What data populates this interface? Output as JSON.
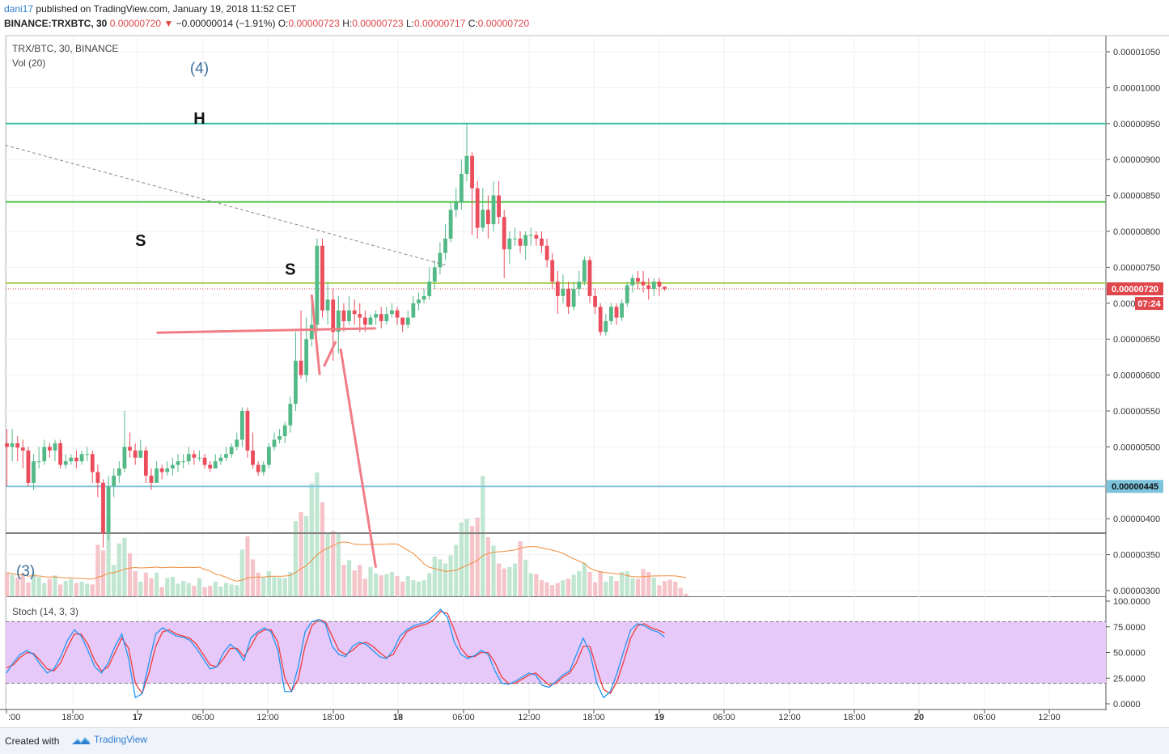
{
  "header": {
    "user": "dani17",
    "published": "published on TradingView.com, January 19, 2018 11:52 CET",
    "symbol": "BINANCE:TRXBTC, 30",
    "last": "0.00000720",
    "change": "−0.00000014 (−1.91%)",
    "o_label": "O:",
    "o": "0.00000723",
    "h_label": "H:",
    "h": "0.00000723",
    "l_label": "L:",
    "l": "0.00000717",
    "c_label": "C:",
    "c": "0.00000720"
  },
  "legend": {
    "series": "TRX/BTC, 30, BINANCE",
    "volume": "Vol (20)",
    "stoch": "Stoch (14, 3, 3)"
  },
  "footer": {
    "created_with": "Created with",
    "brand": "TradingView"
  },
  "colors": {
    "up": "#53b987",
    "down": "#eb4d5c",
    "vol_up": "#c0e6d1",
    "vol_down": "#f5c4c9",
    "vol_ma": "#f08d3c",
    "stoch_k": "#2196f3",
    "stoch_d": "#ef3b3b",
    "stoch_band": "#e6c9f8",
    "teal": "#3cc0a6",
    "green": "#48c443",
    "lime": "#a9cf4e",
    "blue": "#7dc3dc",
    "gray": "#808080",
    "drawing": "#f07d86",
    "last_price": "#e0474c"
  },
  "chart_data": {
    "type": "candlestick",
    "price_axis_ticks": [
      "0.00001050",
      "0.00001000",
      "0.00000950",
      "0.00000900",
      "0.00000850",
      "0.00000800",
      "0.00000750",
      "0.00000700",
      "0.00000650",
      "0.00000600",
      "0.00000550",
      "0.00000500",
      "0.00000450",
      "0.00000400",
      "0.00000350",
      "0.00000300"
    ],
    "price_axis_ticks_hidden": [
      "0.00000700"
    ],
    "price_axis_tick_partial": {
      "0.00000700": "0.0000"
    },
    "ylim": [
      3e-06,
      1.05e-05
    ],
    "time_axis_ticks": [
      ":00",
      "18:00",
      "17",
      "06:00",
      "12:00",
      "18:00",
      "18",
      "06:00",
      "12:00",
      "18:00",
      "19",
      "06:00",
      "12:00",
      "18:00",
      "20",
      "06:00",
      "12:00"
    ],
    "time_axis_bold": [
      "17",
      "18",
      "19",
      "20"
    ],
    "price_labels": [
      {
        "value": "0.00000720",
        "kind": "last"
      },
      {
        "value": "07:24",
        "kind": "countdown"
      },
      {
        "value": "0.00000445",
        "kind": "line"
      }
    ],
    "horizontal_lines": [
      {
        "price": 9.5e-06,
        "color": "teal"
      },
      {
        "price": 8.41e-06,
        "color": "green"
      },
      {
        "price": 7.28e-06,
        "color": "lime"
      },
      {
        "price": 4.45e-06,
        "color": "blue"
      },
      {
        "price": 3.8e-06,
        "color": "gray"
      }
    ],
    "annotations": [
      {
        "text": "(4)",
        "at": [
          36.0,
          1.02e-05
        ]
      },
      {
        "text": "H",
        "at": [
          36.0,
          9.5e-06
        ]
      },
      {
        "text": "S",
        "at": [
          25.0,
          7.8e-06
        ]
      },
      {
        "text": "S",
        "at": [
          53.0,
          7.4e-06
        ]
      },
      {
        "text": "(3)",
        "at": [
          3.5,
          3.2e-06
        ]
      }
    ],
    "drawings": [
      {
        "kind": "trend-dashed",
        "from": [
          -0.3,
          9.2e-06
        ],
        "to": [
          82.0,
          7.53e-06
        ]
      },
      {
        "kind": "neckline",
        "from": [
          28.0,
          6.59e-06
        ],
        "to": [
          69.0,
          6.65e-06
        ]
      },
      {
        "kind": "projection",
        "points": [
          [
            57.0,
            7.12e-06
          ],
          [
            58.5,
            6e-06
          ]
        ]
      },
      {
        "kind": "projection",
        "points": [
          [
            59.3,
            6.12e-06
          ],
          [
            61.5,
            6.47e-06
          ]
        ]
      },
      {
        "kind": "projection",
        "points": [
          [
            62.4,
            6.37e-06
          ],
          [
            69.0,
            3.32e-06
          ]
        ]
      }
    ],
    "candles": [
      [
        5.05,
        5.0,
        5.25,
        4.45
      ],
      [
        5.0,
        5.05,
        5.25,
        4.8
      ],
      [
        5.05,
        4.99,
        5.15,
        4.8
      ],
      [
        4.99,
        4.95,
        5.1,
        4.7
      ],
      [
        4.95,
        4.5,
        5.0,
        4.45
      ],
      [
        4.5,
        4.8,
        4.9,
        4.4
      ],
      [
        4.8,
        4.8,
        5.0,
        4.7
      ],
      [
        4.8,
        5.0,
        5.1,
        4.75
      ],
      [
        5.0,
        4.95,
        5.05,
        4.85
      ],
      [
        4.95,
        5.05,
        5.1,
        4.8
      ],
      [
        5.05,
        4.75,
        5.1,
        4.7
      ],
      [
        4.75,
        4.8,
        4.9,
        4.7
      ],
      [
        4.8,
        4.85,
        4.9,
        4.75
      ],
      [
        4.85,
        4.8,
        4.95,
        4.7
      ],
      [
        4.8,
        4.9,
        4.95,
        4.75
      ],
      [
        4.9,
        4.9,
        5.0,
        4.8
      ],
      [
        4.9,
        4.65,
        4.95,
        4.5
      ],
      [
        4.65,
        4.5,
        4.75,
        4.3
      ],
      [
        4.5,
        3.8,
        4.55,
        3.6
      ],
      [
        3.8,
        4.45,
        4.6,
        3.7
      ],
      [
        4.45,
        4.6,
        4.7,
        4.3
      ],
      [
        4.6,
        4.7,
        4.8,
        4.5
      ],
      [
        4.7,
        5.0,
        5.5,
        4.65
      ],
      [
        5.0,
        4.95,
        5.2,
        4.85
      ],
      [
        4.95,
        4.85,
        5.05,
        4.75
      ],
      [
        4.85,
        4.95,
        5.1,
        4.85
      ],
      [
        4.95,
        4.6,
        5.0,
        4.5
      ],
      [
        4.6,
        4.5,
        4.7,
        4.4
      ],
      [
        4.5,
        4.7,
        4.8,
        4.5
      ],
      [
        4.7,
        4.65,
        4.75,
        4.55
      ],
      [
        4.65,
        4.7,
        4.8,
        4.6
      ],
      [
        4.7,
        4.75,
        4.85,
        4.6
      ],
      [
        4.75,
        4.8,
        4.9,
        4.65
      ],
      [
        4.8,
        4.8,
        4.9,
        4.7
      ],
      [
        4.8,
        4.9,
        5.0,
        4.75
      ],
      [
        4.9,
        4.85,
        4.95,
        4.75
      ],
      [
        4.85,
        4.85,
        4.95,
        4.8
      ],
      [
        4.85,
        4.75,
        4.9,
        4.7
      ],
      [
        4.75,
        4.7,
        4.8,
        4.65
      ],
      [
        4.7,
        4.8,
        4.9,
        4.7
      ],
      [
        4.8,
        4.85,
        4.9,
        4.75
      ],
      [
        4.85,
        4.9,
        5.0,
        4.8
      ],
      [
        4.9,
        5.0,
        5.05,
        4.85
      ],
      [
        5.0,
        5.1,
        5.2,
        4.95
      ],
      [
        5.1,
        5.5,
        5.55,
        5.0
      ],
      [
        5.5,
        4.95,
        5.55,
        4.85
      ],
      [
        4.95,
        4.75,
        5.2,
        4.7
      ],
      [
        4.75,
        4.65,
        4.8,
        4.6
      ],
      [
        4.65,
        4.75,
        4.8,
        4.6
      ],
      [
        4.75,
        5.0,
        5.05,
        4.7
      ],
      [
        5.0,
        5.1,
        5.2,
        4.95
      ],
      [
        5.1,
        5.15,
        5.25,
        5.05
      ],
      [
        5.15,
        5.3,
        5.35,
        5.05
      ],
      [
        5.3,
        5.6,
        5.7,
        5.2
      ],
      [
        5.6,
        6.2,
        6.6,
        5.5
      ],
      [
        6.2,
        6.0,
        6.9,
        5.95
      ],
      [
        6.0,
        6.5,
        6.8,
        5.9
      ],
      [
        6.5,
        6.7,
        7.0,
        6.4
      ],
      [
        6.7,
        7.8,
        7.9,
        6.6
      ],
      [
        7.8,
        6.9,
        7.9,
        6.8
      ],
      [
        6.9,
        7.05,
        7.3,
        6.7
      ],
      [
        7.05,
        6.6,
        7.2,
        6.2
      ],
      [
        6.6,
        6.9,
        7.1,
        6.3
      ],
      [
        6.9,
        6.75,
        7.0,
        6.6
      ],
      [
        6.75,
        6.9,
        7.1,
        6.7
      ],
      [
        6.9,
        6.85,
        7.05,
        6.7
      ],
      [
        6.85,
        6.8,
        7.0,
        6.6
      ],
      [
        6.8,
        6.7,
        6.9,
        6.6
      ],
      [
        6.7,
        6.8,
        6.85,
        6.7
      ],
      [
        6.8,
        6.85,
        6.9,
        6.7
      ],
      [
        6.85,
        6.75,
        6.95,
        6.65
      ],
      [
        6.75,
        6.85,
        6.95,
        6.7
      ],
      [
        6.85,
        6.9,
        7.0,
        6.8
      ],
      [
        6.9,
        6.8,
        6.95,
        6.7
      ],
      [
        6.8,
        6.7,
        6.8,
        6.6
      ],
      [
        6.7,
        6.8,
        6.9,
        6.65
      ],
      [
        6.8,
        7.0,
        7.1,
        6.8
      ],
      [
        7.0,
        7.05,
        7.15,
        6.9
      ],
      [
        7.05,
        7.1,
        7.2,
        7.0
      ],
      [
        7.1,
        7.3,
        7.5,
        7.05
      ],
      [
        7.3,
        7.5,
        7.6,
        7.2
      ],
      [
        7.5,
        7.7,
        7.85,
        7.4
      ],
      [
        7.7,
        7.9,
        8.1,
        7.6
      ],
      [
        7.9,
        8.3,
        8.4,
        7.85
      ],
      [
        8.3,
        8.4,
        8.6,
        8.2
      ],
      [
        8.4,
        8.8,
        9.0,
        8.3
      ],
      [
        8.8,
        9.05,
        9.5,
        8.7
      ],
      [
        9.05,
        8.6,
        9.1,
        7.95
      ],
      [
        8.6,
        8.05,
        8.7,
        7.9
      ],
      [
        8.05,
        8.3,
        8.6,
        8.0
      ],
      [
        8.3,
        8.1,
        8.5,
        7.9
      ],
      [
        8.1,
        8.5,
        8.7,
        8.0
      ],
      [
        8.5,
        8.2,
        8.7,
        8.1
      ],
      [
        8.2,
        7.75,
        8.3,
        7.35
      ],
      [
        7.75,
        7.9,
        8.0,
        7.55
      ],
      [
        7.9,
        7.9,
        8.05,
        7.8
      ],
      [
        7.9,
        7.8,
        8.0,
        7.7
      ],
      [
        7.8,
        7.95,
        8.0,
        7.6
      ],
      [
        7.95,
        7.95,
        8.05,
        7.8
      ],
      [
        7.95,
        7.9,
        8.0,
        7.8
      ],
      [
        7.9,
        7.8,
        8.0,
        7.7
      ],
      [
        7.8,
        7.6,
        7.9,
        7.5
      ],
      [
        7.6,
        7.3,
        7.7,
        7.2
      ],
      [
        7.3,
        7.1,
        7.45,
        6.85
      ],
      [
        7.1,
        7.2,
        7.4,
        7.0
      ],
      [
        7.2,
        6.95,
        7.3,
        6.85
      ],
      [
        6.95,
        7.2,
        7.3,
        6.9
      ],
      [
        7.2,
        7.3,
        7.45,
        7.1
      ],
      [
        7.3,
        7.6,
        7.65,
        7.25
      ],
      [
        7.6,
        7.1,
        7.65,
        7.0
      ],
      [
        7.1,
        6.95,
        7.2,
        6.85
      ],
      [
        6.95,
        6.6,
        7.0,
        6.55
      ],
      [
        6.6,
        6.75,
        6.85,
        6.55
      ],
      [
        6.75,
        6.95,
        7.0,
        6.7
      ],
      [
        6.95,
        6.8,
        7.0,
        6.7
      ],
      [
        6.8,
        7.0,
        7.05,
        6.75
      ],
      [
        7.0,
        7.25,
        7.3,
        6.95
      ],
      [
        7.25,
        7.35,
        7.4,
        7.15
      ],
      [
        7.35,
        7.3,
        7.45,
        7.2
      ],
      [
        7.3,
        7.25,
        7.45,
        7.15
      ],
      [
        7.25,
        7.2,
        7.35,
        7.05
      ],
      [
        7.2,
        7.3,
        7.35,
        7.1
      ],
      [
        7.3,
        7.23,
        7.35,
        7.1
      ],
      [
        7.23,
        7.2,
        7.23,
        7.17
      ]
    ],
    "volume": [
      3.4,
      3.1,
      2.7,
      3.2,
      2.0,
      3.3,
      2.8,
      1.9,
      2.5,
      3.0,
      1.7,
      2.2,
      2.5,
      1.9,
      2.1,
      1.8,
      1.7,
      7.4,
      6.6,
      10.9,
      4.5,
      7.6,
      8.4,
      6.2,
      3.6,
      2.1,
      3.4,
      2.6,
      3.4,
      1.3,
      2.6,
      2.8,
      1.8,
      2.2,
      1.9,
      1.5,
      2.6,
      1.3,
      1.5,
      2.1,
      1.4,
      1.9,
      1.7,
      1.6,
      6.7,
      8.6,
      5.3,
      3.4,
      2.8,
      3.6,
      2.8,
      2.7,
      2.6,
      3.5,
      10.8,
      12.1,
      11.5,
      16.2,
      17.8,
      13.5,
      9.1,
      9.4,
      9.1,
      4.5,
      5.2,
      3.7,
      4.5,
      2.5,
      4.2,
      3.3,
      3.0,
      3.2,
      3.5,
      2.9,
      2.1,
      2.9,
      2.3,
      2.1,
      2.3,
      3.3,
      5.7,
      5.3,
      4.7,
      5.9,
      7.4,
      10.6,
      11.1,
      10.1,
      11.3,
      17.3,
      8.5,
      7.3,
      4.7,
      4.0,
      4.2,
      4.7,
      7.9,
      5.2,
      3.3,
      3.2,
      2.3,
      2.0,
      1.6,
      1.9,
      2.3,
      2.5,
      3.1,
      3.6,
      4.8,
      3.5,
      2.0,
      3.6,
      2.1,
      2.9,
      2.2,
      3.5,
      3.6,
      2.6,
      2.5,
      3.9,
      3.5,
      2.7,
      1.6,
      2.2,
      2.4,
      2.1,
      1.2,
      0.4
    ],
    "volume_max": 20,
    "stoch_k": [
      30,
      40,
      48,
      52,
      48,
      38,
      30,
      34,
      46,
      62,
      72,
      66,
      52,
      36,
      30,
      40,
      56,
      68,
      44,
      6,
      10,
      40,
      68,
      74,
      70,
      66,
      65,
      62,
      54,
      44,
      34,
      36,
      50,
      58,
      52,
      42,
      64,
      70,
      74,
      70,
      52,
      12,
      12,
      36,
      70,
      80,
      82,
      78,
      56,
      48,
      46,
      56,
      60,
      58,
      52,
      46,
      44,
      52,
      66,
      72,
      76,
      78,
      80,
      86,
      92,
      84,
      60,
      48,
      44,
      47,
      52,
      48,
      32,
      20,
      19,
      22,
      26,
      30,
      28,
      18,
      16,
      22,
      28,
      32,
      48,
      64,
      50,
      20,
      6,
      12,
      30,
      52,
      72,
      78,
      76,
      72,
      70,
      65
    ],
    "stoch_d": [
      35,
      38,
      45,
      50,
      49,
      42,
      34,
      32,
      40,
      55,
      68,
      68,
      58,
      42,
      32,
      36,
      50,
      64,
      54,
      20,
      10,
      30,
      56,
      70,
      72,
      68,
      66,
      64,
      58,
      48,
      38,
      36,
      44,
      54,
      54,
      46,
      56,
      68,
      72,
      72,
      60,
      26,
      12,
      24,
      56,
      76,
      82,
      80,
      66,
      52,
      48,
      52,
      58,
      60,
      56,
      50,
      45,
      48,
      60,
      70,
      74,
      76,
      78,
      82,
      90,
      88,
      72,
      54,
      46,
      46,
      50,
      50,
      40,
      26,
      20,
      20,
      24,
      28,
      30,
      24,
      18,
      20,
      26,
      30,
      40,
      56,
      56,
      34,
      14,
      10,
      22,
      42,
      64,
      76,
      78,
      74,
      72,
      69
    ],
    "stoch_ticks": [
      "100.0000",
      "75.0000",
      "50.0000",
      "25.0000",
      "0.0000"
    ],
    "stoch_bands": [
      80,
      20
    ]
  }
}
